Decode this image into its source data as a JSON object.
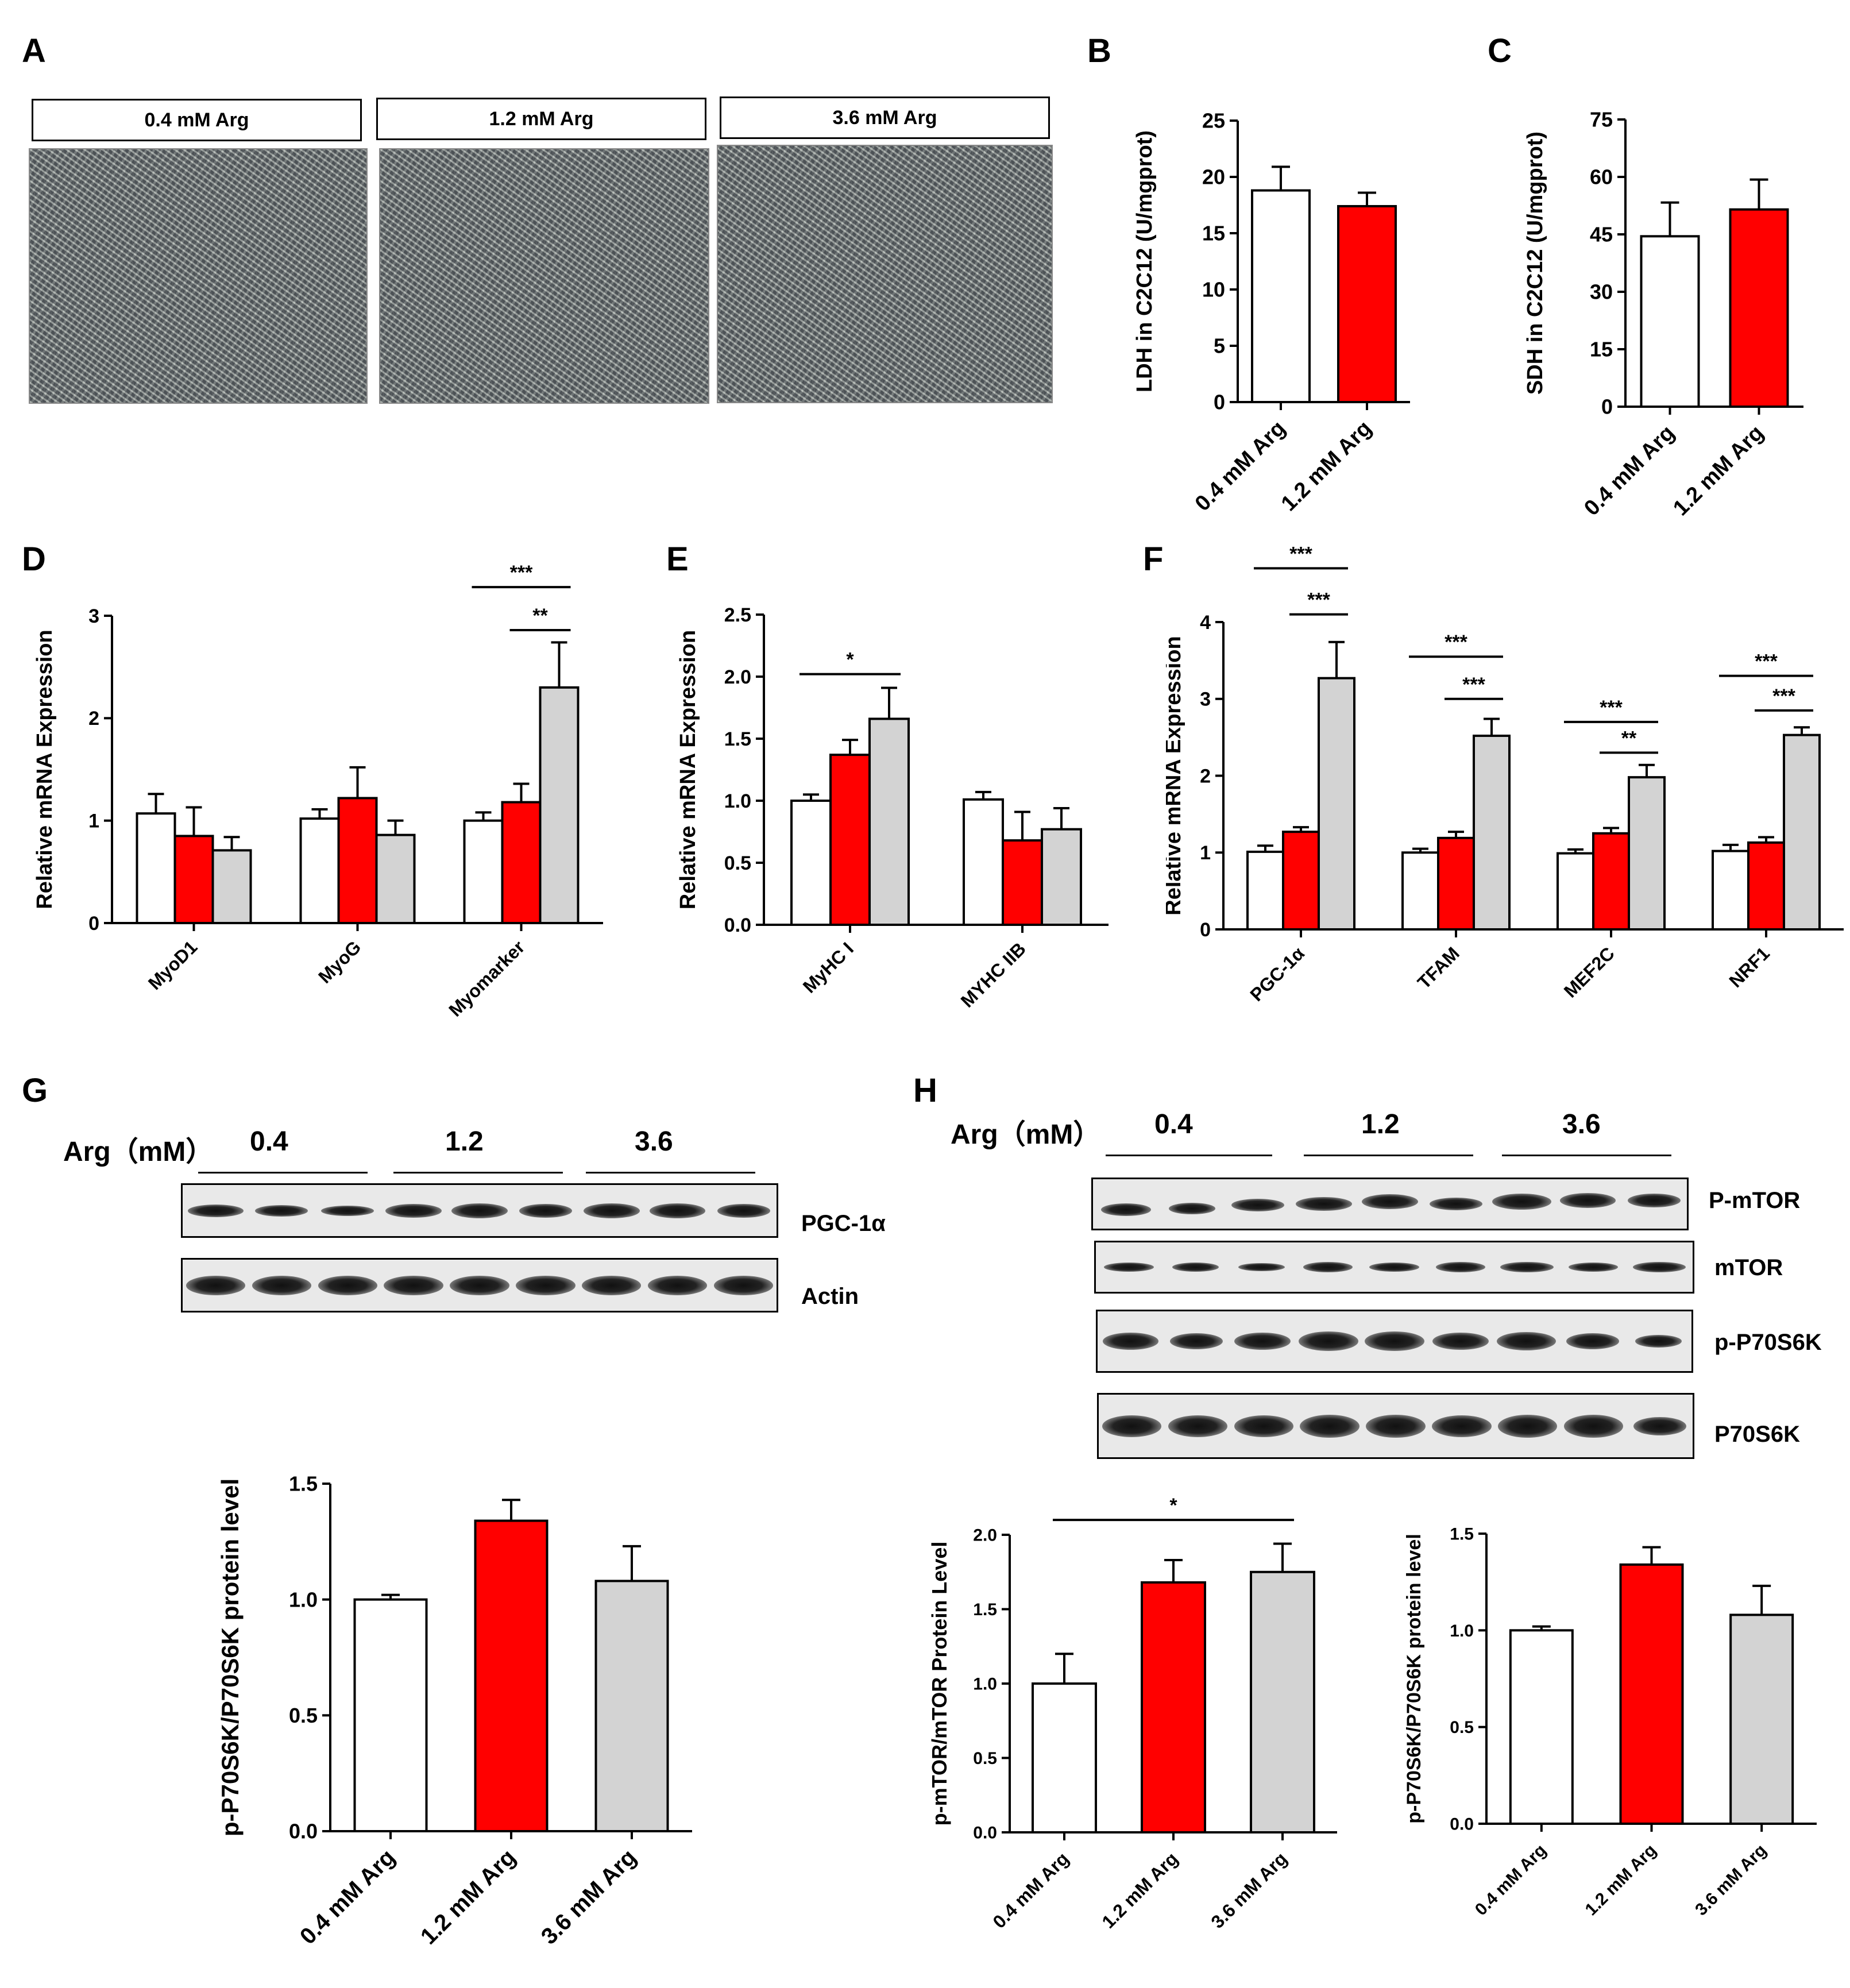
{
  "panel_labels": [
    "A",
    "B",
    "C",
    "D",
    "E",
    "F",
    "G",
    "H"
  ],
  "panel_a": {
    "conditions": [
      "0.4 mM Arg",
      "1.2 mM Arg",
      "3.6 mM Arg"
    ]
  },
  "colors": {
    "white": "#ffffff",
    "red": "#ff0000",
    "gray": "#d3d3d3",
    "axis": "#000000"
  },
  "blot_g": {
    "title": "Arg（mM）",
    "groups": [
      "0.4",
      "1.2",
      "3.6"
    ],
    "rows": [
      "PGC-1α",
      "Actin"
    ]
  },
  "blot_h": {
    "title": "Arg（mM）",
    "groups": [
      "0.4",
      "1.2",
      "3.6"
    ],
    "rows": [
      "P-mTOR",
      "mTOR",
      "p-P70S6K",
      "P70S6K"
    ]
  },
  "chart_data": [
    {
      "id": "B",
      "type": "bar",
      "categories": [
        "0.4 mM Arg",
        "1.2 mM Arg"
      ],
      "values": [
        18.8,
        17.4
      ],
      "errors": [
        2.1,
        1.2
      ],
      "colors": [
        "#ffffff",
        "#ff0000"
      ],
      "ylabel": "LDH in C2C12 (U/mgprot)",
      "ylim": [
        0,
        25
      ],
      "yticks": [
        0,
        5,
        10,
        15,
        20,
        25
      ]
    },
    {
      "id": "C",
      "type": "bar",
      "categories": [
        "0.4 mM Arg",
        "1.2 mM Arg"
      ],
      "values": [
        44.5,
        51.5
      ],
      "errors": [
        8.8,
        7.8
      ],
      "colors": [
        "#ffffff",
        "#ff0000"
      ],
      "ylabel": "SDH in C2C12 (U/mgprot)",
      "ylim": [
        0,
        75
      ],
      "yticks": [
        0,
        15,
        30,
        45,
        60,
        75
      ]
    },
    {
      "id": "D",
      "type": "bar",
      "categories": [
        "MyoD1",
        "MyoG",
        "Myomarker"
      ],
      "series": [
        {
          "values": [
            1.07,
            1.02,
            1.0
          ],
          "errors": [
            0.19,
            0.09,
            0.08
          ],
          "color": "#ffffff"
        },
        {
          "values": [
            0.85,
            1.22,
            1.18
          ],
          "errors": [
            0.28,
            0.3,
            0.18
          ],
          "color": "#ff0000"
        },
        {
          "values": [
            0.71,
            0.86,
            2.3
          ],
          "errors": [
            0.13,
            0.14,
            0.44
          ],
          "color": "#d3d3d3"
        }
      ],
      "ylabel": "Relative mRNA Expression",
      "ylim": [
        0,
        3
      ],
      "yticks": [
        0,
        1,
        2,
        3
      ],
      "annotations": [
        {
          "cat": 2,
          "from": 0,
          "to": 2,
          "y": 3.28,
          "text": "***"
        },
        {
          "cat": 2,
          "from": 1,
          "to": 2,
          "y": 2.86,
          "text": "**"
        }
      ]
    },
    {
      "id": "E",
      "type": "bar",
      "categories": [
        "MyHC I",
        "MYHC IIB"
      ],
      "series": [
        {
          "values": [
            1.0,
            1.01
          ],
          "errors": [
            0.05,
            0.06
          ],
          "color": "#ffffff"
        },
        {
          "values": [
            1.37,
            0.68
          ],
          "errors": [
            0.12,
            0.23
          ],
          "color": "#ff0000"
        },
        {
          "values": [
            1.66,
            0.77
          ],
          "errors": [
            0.25,
            0.17
          ],
          "color": "#d3d3d3"
        }
      ],
      "ylabel": "Relative mRNA Expression",
      "ylim": [
        0,
        2.5
      ],
      "yticks": [
        0,
        0.5,
        1.0,
        1.5,
        2.0,
        2.5
      ],
      "annotations": [
        {
          "cat": 0,
          "from": 0,
          "to": 2,
          "y": 2.02,
          "text": "*"
        }
      ]
    },
    {
      "id": "F",
      "type": "bar",
      "categories": [
        "PGC-1α",
        "TFAM",
        "MEF2C",
        "NRF1"
      ],
      "series": [
        {
          "values": [
            1.01,
            1.0,
            0.99,
            1.02
          ],
          "errors": [
            0.08,
            0.05,
            0.05,
            0.08
          ],
          "color": "#ffffff"
        },
        {
          "values": [
            1.27,
            1.19,
            1.25,
            1.13
          ],
          "errors": [
            0.06,
            0.08,
            0.07,
            0.07
          ],
          "color": "#ff0000"
        },
        {
          "values": [
            3.27,
            2.52,
            1.98,
            2.53
          ],
          "errors": [
            0.47,
            0.22,
            0.16,
            0.1
          ],
          "color": "#d3d3d3"
        }
      ],
      "ylabel": "Relative mRNA Expression",
      "ylim": [
        0,
        4
      ],
      "yticks": [
        0,
        1,
        2,
        3,
        4
      ],
      "annotations": [
        {
          "cat": 0,
          "from": 0,
          "to": 2,
          "y": 4.7,
          "text": "***"
        },
        {
          "cat": 0,
          "from": 1,
          "to": 2,
          "y": 4.1,
          "text": "***"
        },
        {
          "cat": 1,
          "from": 0,
          "to": 2,
          "y": 3.55,
          "text": "***"
        },
        {
          "cat": 1,
          "from": 1,
          "to": 2,
          "y": 3.0,
          "text": "***"
        },
        {
          "cat": 2,
          "from": 0,
          "to": 2,
          "y": 2.7,
          "text": "***"
        },
        {
          "cat": 2,
          "from": 1,
          "to": 2,
          "y": 2.3,
          "text": "**"
        },
        {
          "cat": 3,
          "from": 0,
          "to": 2,
          "y": 3.3,
          "text": "***"
        },
        {
          "cat": 3,
          "from": 1,
          "to": 2,
          "y": 2.85,
          "text": "***"
        }
      ]
    },
    {
      "id": "G",
      "type": "bar",
      "categories": [
        "0.4 mM Arg",
        "1.2 mM Arg",
        "3.6 mM Arg"
      ],
      "values": [
        1.0,
        1.34,
        1.08
      ],
      "errors": [
        0.02,
        0.09,
        0.15
      ],
      "colors": [
        "#ffffff",
        "#ff0000",
        "#d3d3d3"
      ],
      "ylabel": "p-P70S6K/P70S6K protein level",
      "ylim": [
        0,
        1.5
      ],
      "yticks": [
        0.0,
        0.5,
        1.0,
        1.5
      ]
    },
    {
      "id": "H1",
      "type": "bar",
      "categories": [
        "0.4 mM Arg",
        "1.2 mM Arg",
        "3.6 mM Arg"
      ],
      "values": [
        1.0,
        1.68,
        1.75
      ],
      "errors": [
        0.2,
        0.15,
        0.19
      ],
      "colors": [
        "#ffffff",
        "#ff0000",
        "#d3d3d3"
      ],
      "ylabel": "p-mTOR/mTOR Protein Level",
      "ylim": [
        0,
        2.0
      ],
      "yticks": [
        0.0,
        0.5,
        1.0,
        1.5,
        2.0
      ],
      "annotations": [
        {
          "from": 0,
          "to": 2,
          "y": 2.1,
          "text": "*"
        }
      ]
    },
    {
      "id": "H2",
      "type": "bar",
      "categories": [
        "0.4 mM Arg",
        "1.2 mM Arg",
        "3.6 mM Arg"
      ],
      "values": [
        1.0,
        1.34,
        1.08
      ],
      "errors": [
        0.02,
        0.09,
        0.15
      ],
      "colors": [
        "#ffffff",
        "#ff0000",
        "#d3d3d3"
      ],
      "ylabel": "p-P70S6K/P70S6K protein level",
      "ylim": [
        0,
        1.5
      ],
      "yticks": [
        0.0,
        0.5,
        1.0,
        1.5
      ]
    }
  ]
}
